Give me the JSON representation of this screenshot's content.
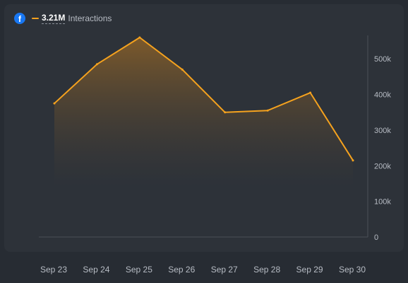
{
  "header": {
    "platform_icon": "facebook-icon",
    "platform_letter": "f",
    "total": "3.21M",
    "metric_label": "Interactions"
  },
  "colors": {
    "line": "#f5a21e",
    "area_top": "#7d5a2b",
    "background": "#2d3239",
    "facebook_blue": "#1877f2"
  },
  "chart_data": {
    "type": "area",
    "categories": [
      "Sep 23",
      "Sep 24",
      "Sep 25",
      "Sep 26",
      "Sep 27",
      "Sep 28",
      "Sep 29",
      "Sep 30"
    ],
    "series": [
      {
        "values": [
          375000,
          485000,
          560000,
          470000,
          350000,
          355000,
          405000,
          215000
        ]
      }
    ],
    "yticks": [
      "0",
      "100k",
      "200k",
      "300k",
      "400k",
      "500k"
    ],
    "ytick_values": [
      0,
      100000,
      200000,
      300000,
      400000,
      500000
    ],
    "ylim": [
      0,
      560000
    ],
    "grid": false,
    "y_axis_position": "right"
  }
}
